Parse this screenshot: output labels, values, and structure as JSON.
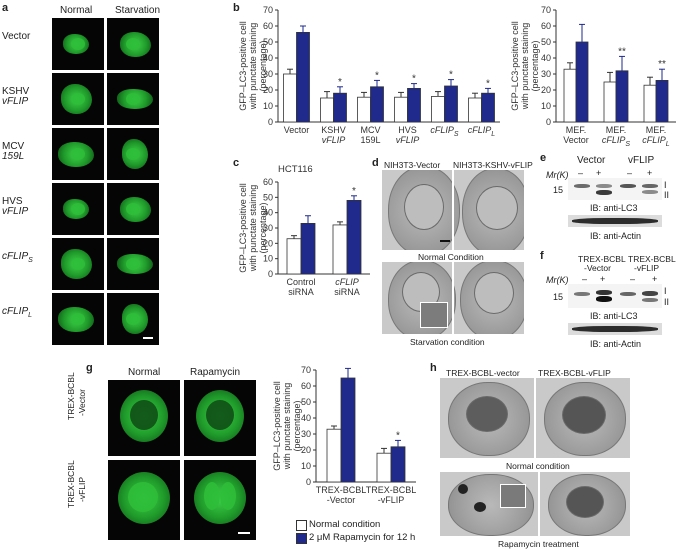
{
  "panel_a": {
    "letter": "a",
    "col_normal": "Normal",
    "col_starvation": "Starvation",
    "rows": [
      {
        "label": "Vector",
        "label2": ""
      },
      {
        "label": "KSHV",
        "label2": "vFLIP"
      },
      {
        "label": "MCV",
        "label2": "159L"
      },
      {
        "label": "HVS",
        "label2": "vFLIP"
      },
      {
        "label": "cFLIP",
        "sub": "S",
        "label2": ""
      },
      {
        "label": "cFLIP",
        "sub": "L",
        "label2": ""
      }
    ]
  },
  "panel_b": {
    "letter": "b",
    "ylabel_1": "GFP–LC3-positive cell",
    "ylabel_2": "with punctate staining",
    "ylabel_3": "(percentage)"
  },
  "panel_c": {
    "letter": "c",
    "title": "HCT116",
    "ylabel_1": "GFP–LC3-positive cell",
    "ylabel_2": "with punctate staining",
    "ylabel_3": "(percentage)"
  },
  "panel_d": {
    "letter": "d",
    "label_left": "NIH3T3-Vector",
    "label_right": "NIH3T3-KSHV-vFLIP",
    "caption_top": "Normal Condition",
    "caption_bottom": "Starvation condition"
  },
  "panel_e": {
    "letter": "e",
    "col1": "Vector",
    "col2": "vFLIP",
    "mr": "Mr(K)",
    "marks": [
      "–",
      "+",
      "–",
      "+"
    ],
    "size": "15",
    "band1": "I",
    "band2": "II",
    "ib1": "IB: anti-LC3",
    "ib2": "IB: anti-Actin"
  },
  "panel_f": {
    "letter": "f",
    "col1a": "TREX-BCBL",
    "col1b": "-Vector",
    "col2a": "TREX-BCBL",
    "col2b": "-vFLIP",
    "mr": "Mr(K)",
    "marks": [
      "–",
      "+",
      "–",
      "+"
    ],
    "size": "15",
    "band1": "I",
    "band2": "II",
    "ib1": "IB: anti-LC3",
    "ib2": "IB: anti-Actin"
  },
  "panel_g": {
    "letter": "g",
    "col_normal": "Normal",
    "col_rapa": "Rapamycin",
    "row1a": "TREX-BCBL",
    "row1b": "-Vector",
    "row2a": "TREX-BCBL",
    "row2b": "-vFLIP",
    "ylabel_1": "GFP–LC3-positive cell",
    "ylabel_2": "with punctate staining",
    "ylabel_3": "(percentage)",
    "legend_normal": "Normal condition",
    "legend_rapa": "2 μM Rapamycin for 12 h"
  },
  "panel_h": {
    "letter": "h",
    "label_left": "TREX-BCBL-vector",
    "label_right": "TREX-BCBL-vFLIP",
    "caption_top": "Normal condition",
    "caption_bottom": "Rapamycin treatment"
  },
  "colors": {
    "normal_bar": "#ffffff",
    "treated_bar": "#1f2a8c",
    "axis": "#333333"
  },
  "chart_data": [
    {
      "id": "b_main",
      "type": "bar",
      "ylim": [
        0,
        70
      ],
      "yticks": [
        0,
        10,
        20,
        30,
        40,
        50,
        60,
        70
      ],
      "categories": [
        {
          "l1": "Vector",
          "l2": "",
          "l2_italic": false,
          "sub": ""
        },
        {
          "l1": "KSHV",
          "l2": "vFLIP",
          "l2_italic": true,
          "sub": ""
        },
        {
          "l1": "MCV",
          "l2": "159L",
          "l2_italic": false,
          "sub": ""
        },
        {
          "l1": "HVS",
          "l2": "vFLIP",
          "l2_italic": true,
          "sub": ""
        },
        {
          "l1": "cFLIP",
          "l2": "",
          "l2_italic": false,
          "sub": "S"
        },
        {
          "l1": "cFLIP",
          "l2": "",
          "l2_italic": false,
          "sub": "L"
        }
      ],
      "series": [
        {
          "values": [
            30,
            15,
            15.5,
            15.5,
            16,
            15
          ],
          "errors": [
            3,
            4,
            3,
            3,
            3,
            3
          ]
        },
        {
          "values": [
            56,
            18,
            22,
            21,
            22.5,
            18
          ],
          "errors": [
            4,
            4,
            4,
            3,
            4,
            3
          ]
        }
      ],
      "stars": [
        "",
        "*",
        "*",
        "*",
        "*",
        "*"
      ]
    },
    {
      "id": "b_mef",
      "type": "bar",
      "ylim": [
        0,
        70
      ],
      "yticks": [
        0,
        10,
        20,
        30,
        40,
        50,
        60,
        70
      ],
      "categories": [
        {
          "l1": "MEF.",
          "l2": "Vector",
          "l2_italic": false,
          "sub": ""
        },
        {
          "l1": "MEF.",
          "l2": "cFLIP",
          "l2_italic": true,
          "sub": "S"
        },
        {
          "l1": "MEF.",
          "l2": "cFLIP",
          "l2_italic": true,
          "sub": "L"
        }
      ],
      "series": [
        {
          "values": [
            33,
            25,
            23
          ],
          "errors": [
            4,
            6,
            5
          ]
        },
        {
          "values": [
            50,
            32,
            26
          ],
          "errors": [
            11,
            9,
            7
          ]
        }
      ],
      "stars": [
        "",
        "**",
        "**"
      ]
    },
    {
      "id": "c",
      "type": "bar",
      "ylim": [
        0,
        60
      ],
      "yticks": [
        0,
        10,
        20,
        30,
        40,
        50,
        60
      ],
      "categories": [
        {
          "l1": "Control",
          "l2": "siRNA",
          "l2_italic": false,
          "sub": ""
        },
        {
          "l1": "cFLIP",
          "l2": "siRNA",
          "l2_italic": false,
          "sub": "",
          "l1_italic": true
        }
      ],
      "series": [
        {
          "values": [
            23,
            32
          ],
          "errors": [
            2,
            2
          ]
        },
        {
          "values": [
            33,
            48
          ],
          "errors": [
            5,
            3
          ]
        }
      ],
      "stars": [
        "",
        "*"
      ]
    },
    {
      "id": "g",
      "type": "bar",
      "ylim": [
        0,
        70
      ],
      "yticks": [
        0,
        10,
        20,
        30,
        40,
        50,
        60,
        70
      ],
      "categories": [
        {
          "l1": "TREX-BCBL",
          "l2": "-Vector",
          "l2_italic": false,
          "sub": ""
        },
        {
          "l1": "TREX-BCBL",
          "l2": "-vFLIP",
          "l2_italic": false,
          "sub": ""
        }
      ],
      "series": [
        {
          "name": "Normal condition",
          "values": [
            33,
            18
          ],
          "errors": [
            2,
            3
          ]
        },
        {
          "name": "2 μM Rapamycin for 12 h",
          "values": [
            65,
            22
          ],
          "errors": [
            6,
            4
          ]
        }
      ],
      "stars": [
        "",
        "*"
      ]
    }
  ]
}
